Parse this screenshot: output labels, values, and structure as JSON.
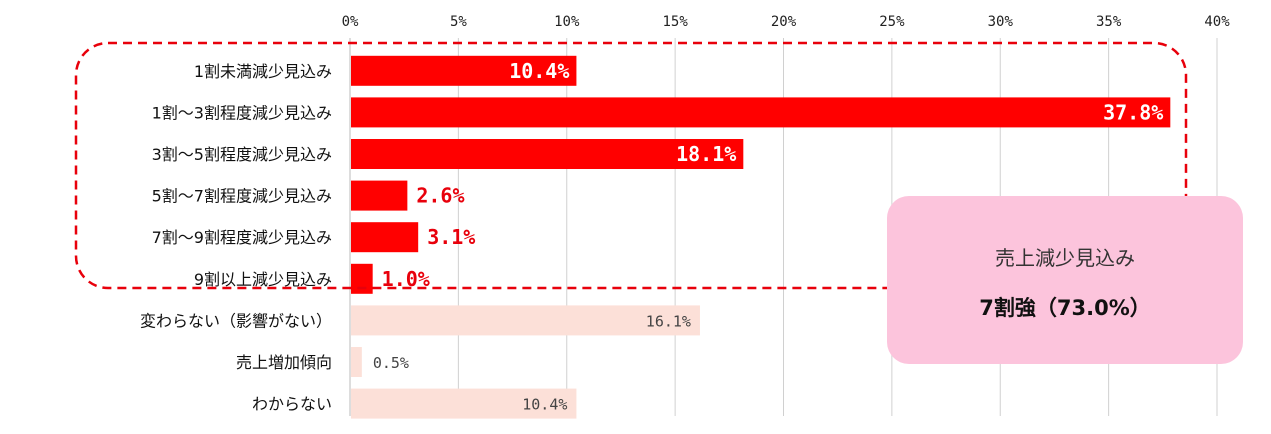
{
  "chart_data": {
    "type": "bar",
    "orientation": "horizontal",
    "categories": [
      "1割未満減少見込み",
      "1割～3割程度減少見込み",
      "3割～5割程度減少見込み",
      "5割～7割程度減少見込み",
      "7割～9割程度減少見込み",
      "9割以上減少見込み",
      "変わらない（影響がない）",
      "売上増加傾向",
      "わからない"
    ],
    "values": [
      10.4,
      37.8,
      18.1,
      2.6,
      3.1,
      1.0,
      16.1,
      0.5,
      10.4
    ],
    "data_labels": [
      "10.4%",
      "37.8%",
      "18.1%",
      "2.6%",
      "3.1%",
      "1.0%",
      "16.1%",
      "0.5%",
      "10.4%"
    ],
    "xlim": [
      0,
      40
    ],
    "xticks": [
      "0%",
      "5%",
      "10%",
      "15%",
      "20%",
      "25%",
      "30%",
      "35%",
      "40%"
    ],
    "grid": true,
    "colors": {
      "highlight": "#ff0000",
      "other": "#fce0d8",
      "dashed_outline": "#e8000b",
      "callout_bg": "#fcc4dc",
      "label_red": "#e8000b"
    },
    "highlight_group": [
      0,
      1,
      2,
      3,
      4,
      5
    ]
  },
  "callout": {
    "title": "売上減少見込み",
    "value": "7割強（73.0%）"
  }
}
